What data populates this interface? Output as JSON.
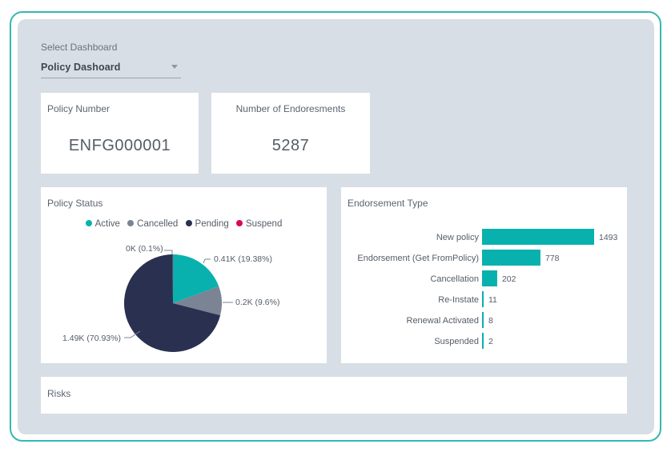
{
  "dashboard_select": {
    "label": "Select Dashboard",
    "value": "Policy Dashoard"
  },
  "kpis": [
    {
      "title": "Policy Number",
      "value": "ENFG000001"
    },
    {
      "title": "Number of Endoresments",
      "value": "5287"
    }
  ],
  "policy_status": {
    "title": "Policy Status",
    "legend": [
      {
        "label": "Active",
        "color": "#08b1ae"
      },
      {
        "label": "Cancelled",
        "color": "#7a8494"
      },
      {
        "label": "Pending",
        "color": "#2a3150"
      },
      {
        "label": "Suspend",
        "color": "#d90a58"
      }
    ],
    "slice_labels": {
      "suspend": "0K (0.1%)",
      "active": "0.41K (19.38%)",
      "cancelled": "0.2K (9.6%)",
      "pending": "1.49K (70.93%)"
    }
  },
  "endorsement_type": {
    "title": "Endorsement Type"
  },
  "risks": {
    "title": "Risks"
  },
  "chart_data": [
    {
      "type": "pie",
      "categories": [
        "Active",
        "Cancelled",
        "Pending",
        "Suspend"
      ],
      "values": [
        0.41,
        0.2,
        1.49,
        0.0
      ],
      "percentages": [
        19.38,
        9.6,
        70.93,
        0.1
      ],
      "value_unit": "K",
      "title": "Policy Status",
      "legend_placement": "top"
    },
    {
      "type": "bar",
      "orientation": "horizontal",
      "categories": [
        "New policy",
        "Endorsement (Get FromPolicy)",
        "Cancellation",
        "Re-Instate",
        "Renewal Activated",
        "Suspended"
      ],
      "values": [
        1493,
        778,
        202,
        11,
        8,
        2
      ],
      "color": "#08b1ae",
      "title": "Endorsement Type"
    }
  ]
}
